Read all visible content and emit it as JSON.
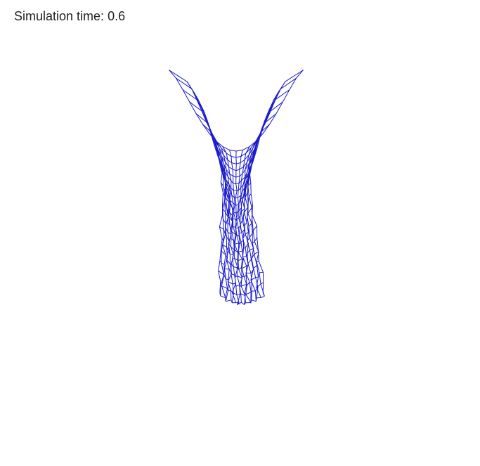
{
  "simulation": {
    "label": "Simulation time:",
    "time": "0.6"
  },
  "cloth": {
    "color": "#1a1acc"
  }
}
